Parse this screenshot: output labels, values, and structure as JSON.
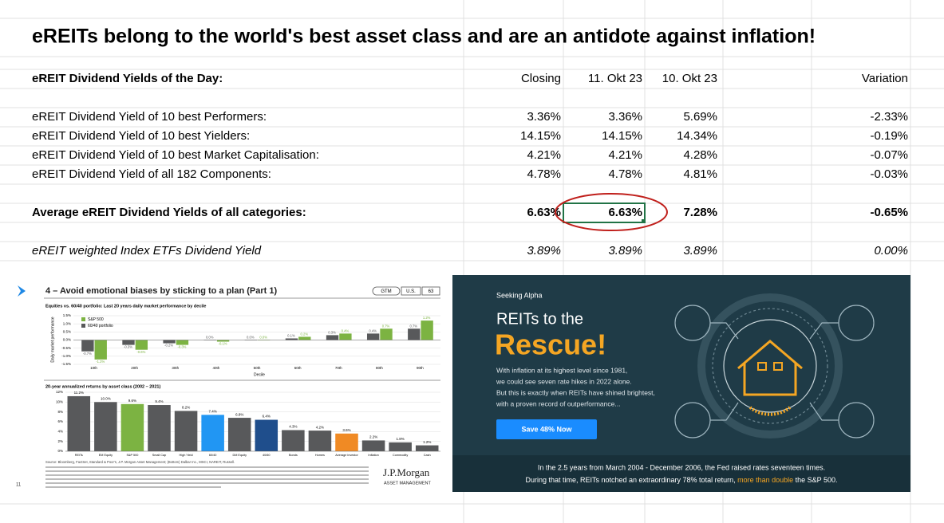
{
  "title": "eREITs belong to the world's best asset class and are an antidote against inflation!",
  "table": {
    "header": [
      "eREIT Dividend Yields of the Day:",
      "Closing",
      "11. Okt 23",
      "10. Okt 23",
      "Variation"
    ],
    "rows": [
      [
        "eREIT Dividend Yield of 10 best Performers:",
        "3.36%",
        "3.36%",
        "5.69%",
        "-2.33%"
      ],
      [
        "eREIT Dividend Yield of 10 best Yielders:",
        "14.15%",
        "14.15%",
        "14.34%",
        "-0.19%"
      ],
      [
        "eREIT Dividend Yield of 10 best Market Capitalisation:",
        "4.21%",
        "4.21%",
        "4.28%",
        "-0.07%"
      ],
      [
        "eREIT Dividend Yield of all 182 Components:",
        "4.78%",
        "4.78%",
        "4.81%",
        "-0.03%"
      ]
    ],
    "average_row": [
      "Average eREIT Dividend Yields of all categories:",
      "6.63%",
      "6.63%",
      "7.28%",
      "-0.65%"
    ],
    "etf_row": [
      "eREIT weighted Index ETFs Dividend Yield",
      "3.89%",
      "3.89%",
      "3.89%",
      "0.00%"
    ]
  },
  "jpm": {
    "page_number": "11",
    "title": "4 – Avoid emotional biases by sticking to a plan (Part 1)",
    "tags": [
      "GTM",
      "U.S.",
      "63"
    ],
    "top_chart": {
      "type": "bar",
      "title": "Equities vs. 60/40 portfolio: Last 20 years daily market performance by decile",
      "y_label": "Daily market performance",
      "x_label": "Decile",
      "categories": [
        "10th",
        "20th",
        "30th",
        "40th",
        "50th",
        "60th",
        "70th",
        "80th",
        "90th"
      ],
      "series": [
        {
          "name": "60/40 portfolio",
          "color": "#58595b",
          "values": [
            -0.7,
            -0.3,
            -0.2,
            0.0,
            0.0,
            0.1,
            0.3,
            0.4,
            0.7
          ],
          "value_labels": [
            "-0.7%",
            "-0.3%",
            "-0.2%",
            "0.0%",
            "0.0%",
            "0.1%",
            "0.3%",
            "0.4%",
            "0.7%"
          ]
        },
        {
          "name": "S&P 500",
          "color": "#7cb342",
          "values": [
            -1.2,
            -0.6,
            -0.3,
            -0.1,
            0.0,
            0.2,
            0.4,
            0.7,
            1.2
          ],
          "value_labels": [
            "-1.2%",
            "-0.6%",
            "-0.3%",
            "-0.1%",
            "0.0%",
            "0.2%",
            "0.4%",
            "0.7%",
            "1.2%"
          ]
        }
      ],
      "ylim": [
        -1.5,
        1.5
      ],
      "yticks": [
        {
          "value": 1.5,
          "label": "1.5%"
        },
        {
          "value": 1.0,
          "label": "1.0%"
        },
        {
          "value": 0.5,
          "label": "0.5%"
        },
        {
          "value": 0,
          "label": "0.0%"
        },
        {
          "value": -0.5,
          "label": "-0.5%"
        },
        {
          "value": -1.0,
          "label": "-1.0%"
        },
        {
          "value": -1.5,
          "label": "-1.5%"
        }
      ]
    },
    "bottom_chart": {
      "type": "bar",
      "title": "20-year annualized returns by asset class (2002 – 2021)",
      "categories": [
        "REITs",
        "EM Equity",
        "S&P 500",
        "Small Cap",
        "High Yield",
        "60/40",
        "DM Equity",
        "40/60",
        "Bonds",
        "Homes",
        "Average investor",
        "Inflation",
        "Commodity",
        "Cash"
      ],
      "values": [
        11.2,
        10.0,
        9.6,
        9.4,
        8.2,
        7.4,
        6.8,
        6.4,
        4.3,
        4.2,
        3.6,
        2.2,
        1.8,
        1.2
      ],
      "value_labels": [
        "11.2%",
        "10.0%",
        "9.6%",
        "9.4%",
        "8.2%",
        "7.4%",
        "6.8%",
        "6.4%",
        "4.3%",
        "4.2%",
        "3.6%",
        "2.2%",
        "1.8%",
        "1.2%"
      ],
      "colors": [
        "#58595b",
        "#58595b",
        "#7cb342",
        "#58595b",
        "#58595b",
        "#2196f3",
        "#58595b",
        "#1f4e8c",
        "#58595b",
        "#58595b",
        "#f08a24",
        "#58595b",
        "#58595b",
        "#58595b"
      ],
      "ylim": [
        0,
        12
      ],
      "yticks": [
        {
          "value": 0,
          "label": "0%"
        },
        {
          "value": 2,
          "label": "2%"
        },
        {
          "value": 4,
          "label": "4%"
        },
        {
          "value": 6,
          "label": "6%"
        },
        {
          "value": 8,
          "label": "8%"
        },
        {
          "value": 10,
          "label": "10%"
        },
        {
          "value": 12,
          "label": "12%"
        }
      ]
    },
    "source": "Source: Bloomberg, FactSet, Standard & Poor's, J.P. Morgan Asset Management; (Bottom) Dalbar Inc., MSCI, NAREIT, Russell.",
    "brand": "J.P.Morgan",
    "brand_sub": "ASSET MANAGEMENT"
  },
  "ad": {
    "brand": "Seeking Alpha",
    "headline": "REITs to the",
    "headline_big": "Rescue!",
    "body": [
      "With inflation at its highest level since 1981,",
      "we could see seven rate hikes in 2022 alone.",
      "But this is exactly when REITs have shined brightest,",
      "with a proven record of outperformance..."
    ],
    "button": "Save 48% Now",
    "footer_line1": "In the 2.5 years from March 2004 - December 2006, the Fed raised rates seventeen times.",
    "footer_line2": [
      "During that time, REITs notched an extraordinary 78% total return, ",
      "more than double",
      " the S&P 500."
    ]
  }
}
